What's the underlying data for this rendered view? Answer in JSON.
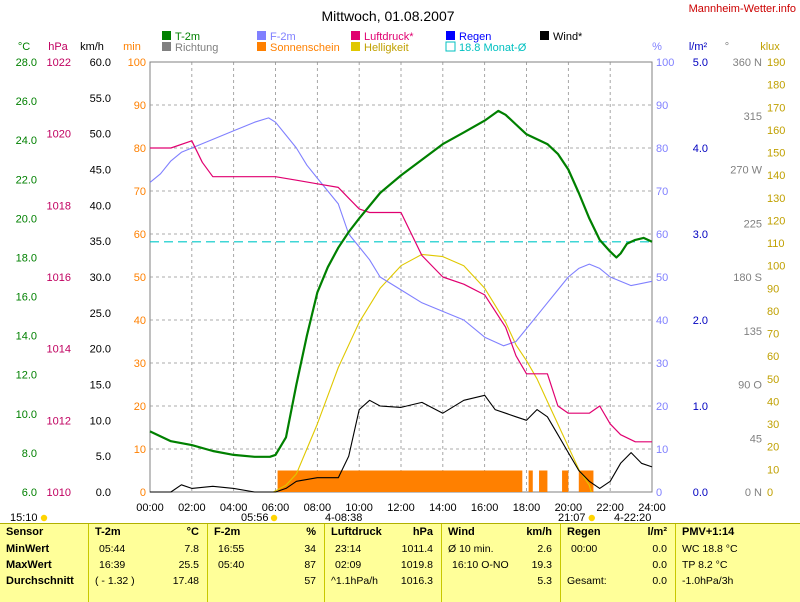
{
  "title": "Mittwoch, 01.08.2007",
  "site": "Mannheim-Wetter.info",
  "legend": [
    {
      "label": "T-2m",
      "color": "#008000"
    },
    {
      "label": "Richtung",
      "color": "#808080"
    },
    {
      "label": "F-2m",
      "color": "#8080ff"
    },
    {
      "label": "Sonnenschein",
      "color": "#ff8000"
    },
    {
      "label": "Luftdruck*",
      "color": "#e00070"
    },
    {
      "label": "Helligkeit",
      "color": "#e0c800"
    },
    {
      "label": "Regen",
      "color": "#0000ff"
    },
    {
      "label": "18.8 Monat-Ø",
      "color": "#00c0c0"
    },
    {
      "label": "Wind*",
      "color": "#000000"
    }
  ],
  "axes": {
    "temp": {
      "unit": "°C",
      "color": "#008000",
      "ticks": [
        "28.0",
        "26.0",
        "24.0",
        "22.0",
        "20.0",
        "18.0",
        "16.0",
        "14.0",
        "12.0",
        "10.0",
        "8.0",
        "6.0"
      ]
    },
    "pressure": {
      "unit": "hPa",
      "color": "#c00060",
      "ticks": [
        "1022",
        "1020",
        "1018",
        "1016",
        "1014",
        "1012",
        "1010"
      ]
    },
    "wind": {
      "unit": "km/h",
      "color": "#000000",
      "ticks": [
        "60.0",
        "55.0",
        "50.0",
        "45.0",
        "40.0",
        "35.0",
        "30.0",
        "25.0",
        "20.0",
        "15.0",
        "10.0",
        "5.0",
        "0.0"
      ]
    },
    "minutes": {
      "unit": "min",
      "color": "#ff8000",
      "ticks": [
        "100",
        "90",
        "80",
        "70",
        "60",
        "50",
        "40",
        "30",
        "20",
        "10",
        "0"
      ]
    },
    "humidity": {
      "unit": "%",
      "color": "#8080ff",
      "ticks": [
        "100",
        "90",
        "80",
        "70",
        "60",
        "50",
        "40",
        "30",
        "20",
        "10",
        "0"
      ]
    },
    "rain": {
      "unit": "l/m²",
      "color": "#0000c0",
      "ticks": [
        "5.0",
        "4.0",
        "3.0",
        "2.0",
        "1.0",
        "0.0"
      ]
    },
    "direction": {
      "unit": "°",
      "color": "#808080",
      "ticks": [
        "360 N",
        "315",
        "270 W",
        "225",
        "180 S",
        "135",
        "90 O",
        "45",
        "0 N"
      ]
    },
    "klux": {
      "unit": "klux",
      "color": "#c0a000",
      "ticks": [
        "190",
        "180",
        "170",
        "160",
        "150",
        "140",
        "130",
        "120",
        "110",
        "100",
        "90",
        "80",
        "70",
        "60",
        "50",
        "40",
        "30",
        "20",
        "10",
        "0"
      ]
    }
  },
  "x_ticks": [
    "00:00",
    "02:00",
    "04:00",
    "06:00",
    "08:00",
    "10:00",
    "12:00",
    "14:00",
    "16:00",
    "18:00",
    "20:00",
    "22:00",
    "24:00"
  ],
  "sun_marks": {
    "sunrise": "05:56",
    "sunset": "21:07",
    "dawn": "15:10",
    "mid1": "4-08:38",
    "mid2": "4-22:20"
  },
  "table": {
    "sensor": {
      "header": "Sensor",
      "rows": [
        "MinWert",
        "MaxWert",
        "Durchschnitt"
      ]
    },
    "t2m": {
      "header": "T-2m",
      "unit": "°C",
      "rows": [
        [
          "05:44",
          "7.8"
        ],
        [
          "16:39",
          "25.5"
        ],
        [
          "( - 1.32 )",
          "17.48"
        ]
      ]
    },
    "f2m": {
      "header": "F-2m",
      "unit": "%",
      "rows": [
        [
          "16:55",
          "34"
        ],
        [
          "05:40",
          "87"
        ],
        [
          "",
          "57"
        ]
      ]
    },
    "pressure": {
      "header": "Luftdruck",
      "unit": "hPa",
      "rows": [
        [
          "23:14",
          "1011.4"
        ],
        [
          "02:09",
          "1019.8"
        ],
        [
          "^1.1hPa/h",
          "1016.3"
        ]
      ]
    },
    "wind": {
      "header": "Wind",
      "unit": "km/h",
      "rows": [
        [
          "Ø 10 min.",
          "2.6"
        ],
        [
          "16:10 O-NO",
          "19.3"
        ],
        [
          "",
          "5.3"
        ]
      ]
    },
    "rain": {
      "header": "Regen",
      "unit": "l/m²",
      "rows": [
        [
          "00:00",
          "0.0"
        ],
        [
          "",
          "0.0"
        ],
        [
          "Gesamt:",
          "0.0"
        ]
      ]
    },
    "pmv": {
      "header": "PMV+1:14",
      "rows": [
        "WC 18.8 °C",
        "TP 8.2 °C",
        "-1.0hPa/3h"
      ]
    }
  },
  "chart_data": {
    "type": "line",
    "title": "Mittwoch, 01.08.2007",
    "x_unit": "hour",
    "xlim": [
      0,
      24
    ],
    "monthly_mean_temp": 18.8,
    "series": [
      {
        "name": "T-2m",
        "unit": "°C",
        "color": "#008000",
        "points": [
          [
            0,
            9.1
          ],
          [
            1,
            8.6
          ],
          [
            2,
            8.4
          ],
          [
            3,
            8.1
          ],
          [
            4,
            7.9
          ],
          [
            5,
            7.8
          ],
          [
            5.73,
            7.8
          ],
          [
            6,
            7.9
          ],
          [
            6.5,
            8.8
          ],
          [
            7,
            11.5
          ],
          [
            7.5,
            14.0
          ],
          [
            8,
            16.2
          ],
          [
            8.5,
            17.5
          ],
          [
            9,
            18.5
          ],
          [
            9.5,
            19.3
          ],
          [
            10,
            20.0
          ],
          [
            11,
            21.3
          ],
          [
            12,
            22.2
          ],
          [
            13,
            23.0
          ],
          [
            14,
            23.8
          ],
          [
            15,
            24.4
          ],
          [
            16,
            25.0
          ],
          [
            16.65,
            25.5
          ],
          [
            17,
            25.3
          ],
          [
            17.5,
            24.8
          ],
          [
            18,
            24.3
          ],
          [
            19,
            23.8
          ],
          [
            19.5,
            23.3
          ],
          [
            20,
            22.5
          ],
          [
            20.5,
            21.3
          ],
          [
            21,
            20.0
          ],
          [
            21.5,
            18.9
          ],
          [
            22,
            18.3
          ],
          [
            22.3,
            18.0
          ],
          [
            22.5,
            18.2
          ],
          [
            22.8,
            18.7
          ],
          [
            23.2,
            18.9
          ],
          [
            23.6,
            19.0
          ],
          [
            24,
            18.8
          ]
        ]
      },
      {
        "name": "F-2m",
        "unit": "%",
        "color": "#8080ff",
        "points": [
          [
            0,
            72
          ],
          [
            0.5,
            74
          ],
          [
            1,
            77
          ],
          [
            1.5,
            79
          ],
          [
            2,
            80
          ],
          [
            3,
            82
          ],
          [
            4,
            84
          ],
          [
            5,
            86
          ],
          [
            5.67,
            87
          ],
          [
            6,
            86
          ],
          [
            6.5,
            83
          ],
          [
            7,
            80
          ],
          [
            7.5,
            76
          ],
          [
            8,
            73
          ],
          [
            8.5,
            70
          ],
          [
            9,
            67
          ],
          [
            9.5,
            60
          ],
          [
            10,
            57
          ],
          [
            10.5,
            54
          ],
          [
            11,
            50
          ],
          [
            12,
            47
          ],
          [
            13,
            44
          ],
          [
            14,
            42
          ],
          [
            15,
            40
          ],
          [
            16,
            36
          ],
          [
            16.9,
            34
          ],
          [
            17.5,
            35
          ],
          [
            18,
            38
          ],
          [
            18.5,
            41
          ],
          [
            19,
            44
          ],
          [
            19.5,
            47
          ],
          [
            20,
            50
          ],
          [
            20.5,
            52
          ],
          [
            21,
            53
          ],
          [
            21.5,
            52
          ],
          [
            22,
            50
          ],
          [
            23,
            48
          ],
          [
            24,
            49
          ]
        ]
      },
      {
        "name": "Luftdruck*",
        "unit": "hPa",
        "color": "#e00070",
        "points": [
          [
            0,
            1019.6
          ],
          [
            1,
            1019.6
          ],
          [
            2,
            1019.8
          ],
          [
            2.5,
            1019.2
          ],
          [
            3,
            1018.8
          ],
          [
            4,
            1018.8
          ],
          [
            6,
            1018.8
          ],
          [
            7,
            1018.7
          ],
          [
            8,
            1018.6
          ],
          [
            9,
            1018.5
          ],
          [
            9.5,
            1018.2
          ],
          [
            10,
            1017.9
          ],
          [
            10.5,
            1017.8
          ],
          [
            12,
            1017.8
          ],
          [
            13,
            1016.6
          ],
          [
            14,
            1016.0
          ],
          [
            15,
            1015.8
          ],
          [
            16,
            1015.5
          ],
          [
            17,
            1014.6
          ],
          [
            17.5,
            1013.8
          ],
          [
            18,
            1013.3
          ],
          [
            19,
            1013.3
          ],
          [
            19.5,
            1012.4
          ],
          [
            20,
            1012.2
          ],
          [
            21,
            1012.2
          ],
          [
            21.5,
            1012.4
          ],
          [
            22,
            1011.9
          ],
          [
            22.5,
            1011.6
          ],
          [
            23.2,
            1011.4
          ],
          [
            24,
            1011.4
          ]
        ]
      },
      {
        "name": "Helligkeit",
        "unit": "klux",
        "color": "#e0c800",
        "points": [
          [
            5.9,
            0
          ],
          [
            6.5,
            3
          ],
          [
            7,
            8
          ],
          [
            8,
            30
          ],
          [
            9,
            55
          ],
          [
            10,
            75
          ],
          [
            11,
            90
          ],
          [
            12,
            100
          ],
          [
            13,
            105
          ],
          [
            14,
            104
          ],
          [
            15,
            100
          ],
          [
            16,
            90
          ],
          [
            17,
            75
          ],
          [
            17.5,
            65
          ],
          [
            18,
            58
          ],
          [
            18.5,
            50
          ],
          [
            19,
            40
          ],
          [
            19.5,
            30
          ],
          [
            20,
            20
          ],
          [
            20.5,
            10
          ],
          [
            21,
            3
          ],
          [
            21.1,
            0
          ]
        ]
      },
      {
        "name": "Wind*",
        "unit": "km/h",
        "color": "#000000",
        "points": [
          [
            0,
            0
          ],
          [
            1,
            0
          ],
          [
            1.5,
            1
          ],
          [
            2,
            0.5
          ],
          [
            3,
            0.8
          ],
          [
            4,
            0.5
          ],
          [
            5,
            0
          ],
          [
            6,
            0
          ],
          [
            6.5,
            0.5
          ],
          [
            7,
            1.5
          ],
          [
            8,
            2.0
          ],
          [
            9,
            2.0
          ],
          [
            9.5,
            5.0
          ],
          [
            10,
            11.5
          ],
          [
            10.5,
            12.8
          ],
          [
            11,
            12.0
          ],
          [
            12,
            11.8
          ],
          [
            13,
            12.5
          ],
          [
            14,
            11.0
          ],
          [
            15,
            12.8
          ],
          [
            16,
            13.5
          ],
          [
            16.5,
            11.5
          ],
          [
            17,
            11.0
          ],
          [
            17.5,
            10.5
          ],
          [
            18,
            10.0
          ],
          [
            18.5,
            11.5
          ],
          [
            19,
            10.5
          ],
          [
            19.5,
            8.0
          ],
          [
            20,
            5.5
          ],
          [
            20.5,
            3.0
          ],
          [
            21,
            1.5
          ],
          [
            21.5,
            0.5
          ],
          [
            22,
            1.5
          ],
          [
            22.5,
            4.0
          ],
          [
            23,
            5.5
          ],
          [
            23.5,
            4.0
          ],
          [
            24,
            3.5
          ]
        ]
      }
    ],
    "sunshine": {
      "name": "Sonnenschein",
      "unit": "min",
      "color": "#ff8000",
      "intervals": [
        [
          6.1,
          17.8
        ],
        [
          18.1,
          18.3
        ],
        [
          18.6,
          19.0
        ],
        [
          19.7,
          20.0
        ],
        [
          20.5,
          21.2
        ]
      ],
      "value": 5
    }
  }
}
